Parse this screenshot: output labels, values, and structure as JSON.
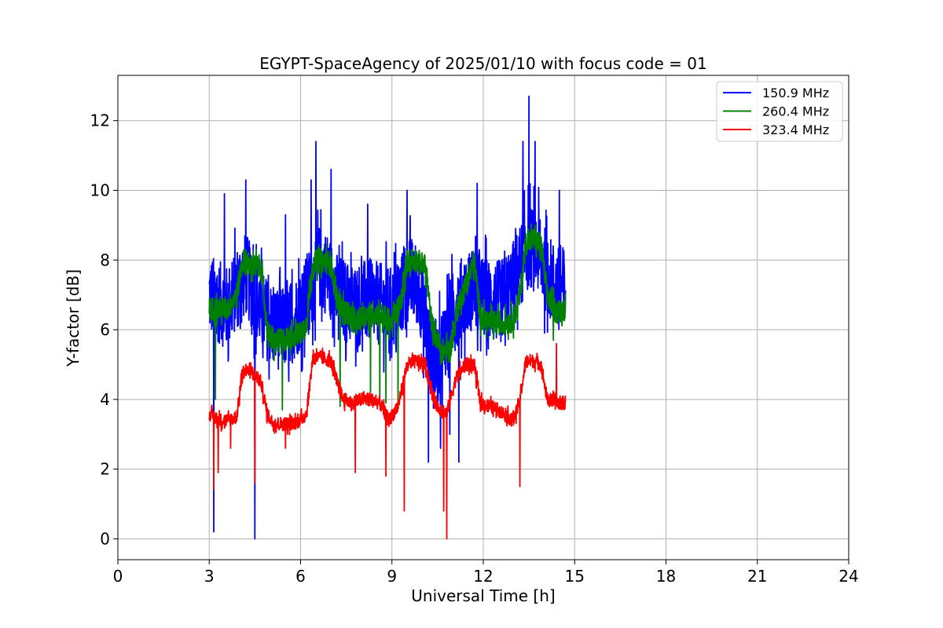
{
  "chart_data": {
    "type": "line",
    "title": "EGYPT-SpaceAgency of 2025/01/10 with focus code = 01",
    "xlabel": "Universal Time [h]",
    "ylabel": "Y-factor [dB]",
    "xlim": [
      0,
      24
    ],
    "ylim": [
      -0.6,
      13.3
    ],
    "xticks": [
      0,
      3,
      6,
      9,
      12,
      15,
      18,
      21,
      24
    ],
    "yticks": [
      0,
      2,
      4,
      6,
      8,
      10,
      12
    ],
    "grid": true,
    "legend_position": "top-right",
    "series": [
      {
        "name": "150.9 MHz",
        "color": "#0000ff",
        "baseline": [
          [
            3.0,
            7.0
          ],
          [
            3.3,
            6.8
          ],
          [
            3.6,
            6.6
          ],
          [
            3.9,
            7.2
          ],
          [
            4.2,
            7.6
          ],
          [
            4.5,
            7.0
          ],
          [
            4.8,
            6.4
          ],
          [
            5.1,
            6.1
          ],
          [
            5.4,
            6.0
          ],
          [
            5.7,
            6.2
          ],
          [
            6.0,
            6.6
          ],
          [
            6.3,
            7.2
          ],
          [
            6.6,
            7.8
          ],
          [
            6.9,
            7.6
          ],
          [
            7.2,
            7.0
          ],
          [
            7.5,
            6.8
          ],
          [
            7.8,
            6.7
          ],
          [
            8.1,
            6.8
          ],
          [
            8.4,
            6.8
          ],
          [
            8.7,
            6.7
          ],
          [
            9.0,
            6.6
          ],
          [
            9.3,
            7.0
          ],
          [
            9.6,
            7.5
          ],
          [
            9.9,
            7.2
          ],
          [
            10.2,
            5.6
          ],
          [
            10.5,
            5.0
          ],
          [
            10.8,
            6.0
          ],
          [
            11.1,
            6.7
          ],
          [
            11.4,
            7.0
          ],
          [
            11.7,
            7.2
          ],
          [
            12.0,
            6.9
          ],
          [
            12.3,
            6.8
          ],
          [
            12.6,
            6.8
          ],
          [
            12.9,
            7.2
          ],
          [
            13.2,
            7.8
          ],
          [
            13.5,
            8.4
          ],
          [
            13.8,
            8.2
          ],
          [
            14.1,
            7.6
          ],
          [
            14.4,
            7.2
          ],
          [
            14.7,
            7.2
          ]
        ],
        "noise_amplitude": 1.2,
        "peaks": [
          [
            3.15,
            0.2
          ],
          [
            3.5,
            9.9
          ],
          [
            4.2,
            10.3
          ],
          [
            4.5,
            0.0
          ],
          [
            5.5,
            9.3
          ],
          [
            6.35,
            10.3
          ],
          [
            6.5,
            11.4
          ],
          [
            7.0,
            10.6
          ],
          [
            8.2,
            9.6
          ],
          [
            9.5,
            10.0
          ],
          [
            10.2,
            2.2
          ],
          [
            10.6,
            2.6
          ],
          [
            10.9,
            3.0
          ],
          [
            11.2,
            2.2
          ],
          [
            11.8,
            10.2
          ],
          [
            13.3,
            11.4
          ],
          [
            13.5,
            12.7
          ],
          [
            13.7,
            11.4
          ],
          [
            14.5,
            10.0
          ]
        ]
      },
      {
        "name": "260.4 MHz",
        "color": "#008000",
        "baseline": [
          [
            3.0,
            6.6
          ],
          [
            3.3,
            6.6
          ],
          [
            3.6,
            6.6
          ],
          [
            3.9,
            7.0
          ],
          [
            4.1,
            8.0
          ],
          [
            4.4,
            7.8
          ],
          [
            4.7,
            7.8
          ],
          [
            4.9,
            6.0
          ],
          [
            5.1,
            5.6
          ],
          [
            5.4,
            5.7
          ],
          [
            5.7,
            5.8
          ],
          [
            6.0,
            5.9
          ],
          [
            6.2,
            6.2
          ],
          [
            6.4,
            7.9
          ],
          [
            6.7,
            8.0
          ],
          [
            7.0,
            7.9
          ],
          [
            7.2,
            6.8
          ],
          [
            7.5,
            6.5
          ],
          [
            7.8,
            6.2
          ],
          [
            8.1,
            6.4
          ],
          [
            8.4,
            6.5
          ],
          [
            8.7,
            6.4
          ],
          [
            9.0,
            6.2
          ],
          [
            9.3,
            6.8
          ],
          [
            9.5,
            8.0
          ],
          [
            9.8,
            8.0
          ],
          [
            10.1,
            7.8
          ],
          [
            10.3,
            6.2
          ],
          [
            10.6,
            5.4
          ],
          [
            10.9,
            5.4
          ],
          [
            11.2,
            6.8
          ],
          [
            11.5,
            7.4
          ],
          [
            11.7,
            8.0
          ],
          [
            11.9,
            6.4
          ],
          [
            12.2,
            6.2
          ],
          [
            12.5,
            6.2
          ],
          [
            12.8,
            6.2
          ],
          [
            13.0,
            6.3
          ],
          [
            13.2,
            7.0
          ],
          [
            13.4,
            8.5
          ],
          [
            13.7,
            8.6
          ],
          [
            13.9,
            8.4
          ],
          [
            14.1,
            7.0
          ],
          [
            14.4,
            6.5
          ],
          [
            14.7,
            6.6
          ]
        ],
        "noise_amplitude": 0.35,
        "peaks": [
          [
            3.2,
            4.0
          ],
          [
            4.2,
            8.3
          ],
          [
            5.4,
            3.7
          ],
          [
            7.3,
            3.8
          ],
          [
            8.3,
            4.2
          ],
          [
            8.6,
            3.8
          ],
          [
            8.8,
            3.9
          ],
          [
            9.2,
            3.8
          ],
          [
            9.7,
            8.1
          ],
          [
            10.6,
            5.0
          ],
          [
            13.7,
            9.0
          ],
          [
            14.3,
            5.7
          ]
        ]
      },
      {
        "name": "323.4 MHz",
        "color": "#ff0000",
        "baseline": [
          [
            3.0,
            3.6
          ],
          [
            3.3,
            3.4
          ],
          [
            3.6,
            3.4
          ],
          [
            3.9,
            3.5
          ],
          [
            4.1,
            4.8
          ],
          [
            4.4,
            4.8
          ],
          [
            4.7,
            4.5
          ],
          [
            4.9,
            3.6
          ],
          [
            5.1,
            3.3
          ],
          [
            5.4,
            3.3
          ],
          [
            5.7,
            3.3
          ],
          [
            6.0,
            3.4
          ],
          [
            6.2,
            3.6
          ],
          [
            6.4,
            5.2
          ],
          [
            6.7,
            5.2
          ],
          [
            7.0,
            5.1
          ],
          [
            7.2,
            4.5
          ],
          [
            7.4,
            4.0
          ],
          [
            7.7,
            3.9
          ],
          [
            8.0,
            4.0
          ],
          [
            8.3,
            4.0
          ],
          [
            8.6,
            3.9
          ],
          [
            8.9,
            3.4
          ],
          [
            9.2,
            3.8
          ],
          [
            9.5,
            5.0
          ],
          [
            9.8,
            5.1
          ],
          [
            10.1,
            5.0
          ],
          [
            10.3,
            4.2
          ],
          [
            10.5,
            3.8
          ],
          [
            10.8,
            3.6
          ],
          [
            11.1,
            4.6
          ],
          [
            11.4,
            5.0
          ],
          [
            11.7,
            5.0
          ],
          [
            11.9,
            3.9
          ],
          [
            12.2,
            3.8
          ],
          [
            12.5,
            3.7
          ],
          [
            12.8,
            3.5
          ],
          [
            13.0,
            3.4
          ],
          [
            13.2,
            4.0
          ],
          [
            13.4,
            5.1
          ],
          [
            13.7,
            5.1
          ],
          [
            13.9,
            5.0
          ],
          [
            14.1,
            4.0
          ],
          [
            14.4,
            3.9
          ],
          [
            14.7,
            3.9
          ]
        ],
        "noise_amplitude": 0.2,
        "peaks": [
          [
            3.15,
            1.4
          ],
          [
            3.3,
            1.9
          ],
          [
            3.7,
            2.6
          ],
          [
            4.5,
            1.6
          ],
          [
            5.5,
            2.6
          ],
          [
            7.8,
            1.9
          ],
          [
            8.8,
            1.8
          ],
          [
            9.4,
            0.8
          ],
          [
            10.7,
            0.8
          ],
          [
            10.8,
            0.0
          ],
          [
            13.2,
            1.5
          ],
          [
            14.4,
            5.6
          ]
        ]
      }
    ]
  }
}
